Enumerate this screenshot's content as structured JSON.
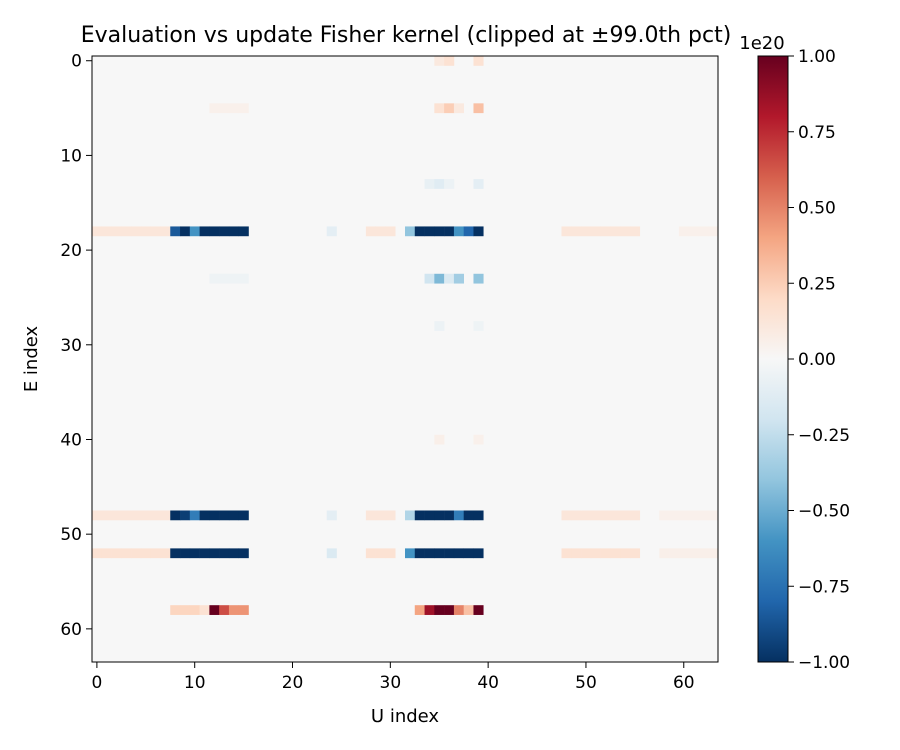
{
  "chart_data": {
    "type": "heatmap",
    "title": "Evaluation vs update Fisher kernel (clipped at ±99.0th pct)",
    "xlabel": "U index",
    "ylabel": "E index",
    "x_ticks": [
      0,
      10,
      20,
      30,
      40,
      50,
      60
    ],
    "y_ticks": [
      0,
      10,
      20,
      30,
      40,
      50,
      60
    ],
    "rows": 64,
    "cols": 64,
    "colormap": "RdBu_r",
    "vmin": -1.0,
    "vmax": 1.0,
    "colorbar": {
      "scale_label": "1e20",
      "ticks": [
        1.0,
        0.75,
        0.5,
        0.25,
        0.0,
        -0.25,
        -0.5,
        -0.75,
        -1.0
      ],
      "tick_labels": [
        "1.00",
        "0.75",
        "0.50",
        "0.25",
        "0.00",
        "−0.25",
        "−0.50",
        "−0.75",
        "−1.00"
      ]
    },
    "background_value": 0.0,
    "cells": [
      {
        "r": 18,
        "c": [
          0,
          7
        ],
        "v": 0.12
      },
      {
        "r": 18,
        "c": [
          8,
          8
        ],
        "v": -0.85
      },
      {
        "r": 18,
        "c": [
          9,
          9
        ],
        "v": -1.0
      },
      {
        "r": 18,
        "c": [
          10,
          10
        ],
        "v": -0.6
      },
      {
        "r": 18,
        "c": [
          11,
          15
        ],
        "v": -1.0
      },
      {
        "r": 18,
        "c": [
          24,
          24
        ],
        "v": -0.1
      },
      {
        "r": 18,
        "c": [
          28,
          30
        ],
        "v": 0.12
      },
      {
        "r": 18,
        "c": [
          32,
          32
        ],
        "v": -0.4
      },
      {
        "r": 18,
        "c": [
          33,
          36
        ],
        "v": -1.0
      },
      {
        "r": 18,
        "c": [
          37,
          37
        ],
        "v": -0.6
      },
      {
        "r": 18,
        "c": [
          38,
          38
        ],
        "v": -0.8
      },
      {
        "r": 18,
        "c": [
          39,
          39
        ],
        "v": -1.0
      },
      {
        "r": 18,
        "c": [
          48,
          55
        ],
        "v": 0.12
      },
      {
        "r": 18,
        "c": [
          60,
          63
        ],
        "v": 0.05
      },
      {
        "r": 48,
        "c": [
          0,
          7
        ],
        "v": 0.12
      },
      {
        "r": 48,
        "c": [
          8,
          8
        ],
        "v": -1.0
      },
      {
        "r": 48,
        "c": [
          9,
          9
        ],
        "v": -0.95
      },
      {
        "r": 48,
        "c": [
          10,
          10
        ],
        "v": -0.7
      },
      {
        "r": 48,
        "c": [
          11,
          15
        ],
        "v": -1.0
      },
      {
        "r": 48,
        "c": [
          24,
          24
        ],
        "v": -0.1
      },
      {
        "r": 48,
        "c": [
          28,
          30
        ],
        "v": 0.12
      },
      {
        "r": 48,
        "c": [
          32,
          32
        ],
        "v": -0.3
      },
      {
        "r": 48,
        "c": [
          33,
          36
        ],
        "v": -1.0
      },
      {
        "r": 48,
        "c": [
          37,
          37
        ],
        "v": -0.7
      },
      {
        "r": 48,
        "c": [
          38,
          39
        ],
        "v": -1.0
      },
      {
        "r": 48,
        "c": [
          48,
          55
        ],
        "v": 0.12
      },
      {
        "r": 48,
        "c": [
          58,
          63
        ],
        "v": 0.05
      },
      {
        "r": 52,
        "c": [
          0,
          7
        ],
        "v": 0.15
      },
      {
        "r": 52,
        "c": [
          8,
          15
        ],
        "v": -1.0
      },
      {
        "r": 52,
        "c": [
          24,
          24
        ],
        "v": -0.15
      },
      {
        "r": 52,
        "c": [
          28,
          30
        ],
        "v": 0.15
      },
      {
        "r": 52,
        "c": [
          32,
          32
        ],
        "v": -0.6
      },
      {
        "r": 52,
        "c": [
          33,
          39
        ],
        "v": -1.0
      },
      {
        "r": 52,
        "c": [
          48,
          55
        ],
        "v": 0.15
      },
      {
        "r": 52,
        "c": [
          58,
          63
        ],
        "v": 0.06
      },
      {
        "r": 58,
        "c": [
          8,
          10
        ],
        "v": 0.22
      },
      {
        "r": 58,
        "c": [
          11,
          11
        ],
        "v": 0.15
      },
      {
        "r": 58,
        "c": [
          12,
          12
        ],
        "v": 1.0
      },
      {
        "r": 58,
        "c": [
          13,
          13
        ],
        "v": 0.65
      },
      {
        "r": 58,
        "c": [
          14,
          15
        ],
        "v": 0.45
      },
      {
        "r": 58,
        "c": [
          33,
          33
        ],
        "v": 0.4
      },
      {
        "r": 58,
        "c": [
          34,
          34
        ],
        "v": 0.85
      },
      {
        "r": 58,
        "c": [
          35,
          36
        ],
        "v": 1.0
      },
      {
        "r": 58,
        "c": [
          37,
          37
        ],
        "v": 0.5
      },
      {
        "r": 58,
        "c": [
          38,
          38
        ],
        "v": 0.3
      },
      {
        "r": 58,
        "c": [
          39,
          39
        ],
        "v": 1.0
      },
      {
        "r": 23,
        "c": [
          12,
          15
        ],
        "v": -0.05
      },
      {
        "r": 23,
        "c": [
          34,
          34
        ],
        "v": -0.2
      },
      {
        "r": 23,
        "c": [
          35,
          35
        ],
        "v": -0.45
      },
      {
        "r": 23,
        "c": [
          36,
          36
        ],
        "v": -0.15
      },
      {
        "r": 23,
        "c": [
          37,
          37
        ],
        "v": -0.35
      },
      {
        "r": 23,
        "c": [
          39,
          39
        ],
        "v": -0.4
      },
      {
        "r": 5,
        "c": [
          12,
          15
        ],
        "v": 0.05
      },
      {
        "r": 5,
        "c": [
          35,
          35
        ],
        "v": 0.15
      },
      {
        "r": 5,
        "c": [
          36,
          36
        ],
        "v": 0.25
      },
      {
        "r": 5,
        "c": [
          37,
          37
        ],
        "v": 0.1
      },
      {
        "r": 5,
        "c": [
          39,
          39
        ],
        "v": 0.3
      },
      {
        "r": 0,
        "c": [
          35,
          35
        ],
        "v": 0.1
      },
      {
        "r": 0,
        "c": [
          36,
          36
        ],
        "v": 0.15
      },
      {
        "r": 0,
        "c": [
          39,
          39
        ],
        "v": 0.15
      },
      {
        "r": 13,
        "c": [
          34,
          34
        ],
        "v": -0.08
      },
      {
        "r": 13,
        "c": [
          35,
          35
        ],
        "v": -0.12
      },
      {
        "r": 13,
        "c": [
          36,
          36
        ],
        "v": -0.06
      },
      {
        "r": 13,
        "c": [
          39,
          39
        ],
        "v": -0.1
      },
      {
        "r": 28,
        "c": [
          35,
          35
        ],
        "v": -0.06
      },
      {
        "r": 28,
        "c": [
          39,
          39
        ],
        "v": -0.05
      },
      {
        "r": 40,
        "c": [
          35,
          35
        ],
        "v": 0.06
      },
      {
        "r": 40,
        "c": [
          39,
          39
        ],
        "v": 0.05
      }
    ]
  }
}
